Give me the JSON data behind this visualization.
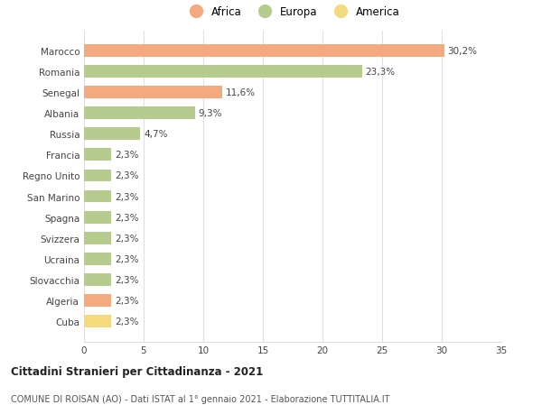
{
  "categories": [
    "Marocco",
    "Romania",
    "Senegal",
    "Albania",
    "Russia",
    "Francia",
    "Regno Unito",
    "San Marino",
    "Spagna",
    "Svizzera",
    "Ucraina",
    "Slovacchia",
    "Algeria",
    "Cuba"
  ],
  "values": [
    30.2,
    23.3,
    11.6,
    9.3,
    4.7,
    2.3,
    2.3,
    2.3,
    2.3,
    2.3,
    2.3,
    2.3,
    2.3,
    2.3
  ],
  "labels": [
    "30,2%",
    "23,3%",
    "11,6%",
    "9,3%",
    "4,7%",
    "2,3%",
    "2,3%",
    "2,3%",
    "2,3%",
    "2,3%",
    "2,3%",
    "2,3%",
    "2,3%",
    "2,3%"
  ],
  "colors": [
    "#f4a97f",
    "#b5cc8e",
    "#f4a97f",
    "#b5cc8e",
    "#b5cc8e",
    "#b5cc8e",
    "#b5cc8e",
    "#b5cc8e",
    "#b5cc8e",
    "#b5cc8e",
    "#b5cc8e",
    "#b5cc8e",
    "#f4a97f",
    "#f5d97e"
  ],
  "legend_labels": [
    "Africa",
    "Europa",
    "America"
  ],
  "legend_colors": [
    "#f4a97f",
    "#b5cc8e",
    "#f5d97e"
  ],
  "xlim": [
    0,
    35
  ],
  "xticks": [
    0,
    5,
    10,
    15,
    20,
    25,
    30,
    35
  ],
  "title1": "Cittadini Stranieri per Cittadinanza - 2021",
  "title2": "COMUNE DI ROISAN (AO) - Dati ISTAT al 1° gennaio 2021 - Elaborazione TUTTITALIA.IT",
  "background_color": "#ffffff",
  "grid_color": "#e0e0e0"
}
